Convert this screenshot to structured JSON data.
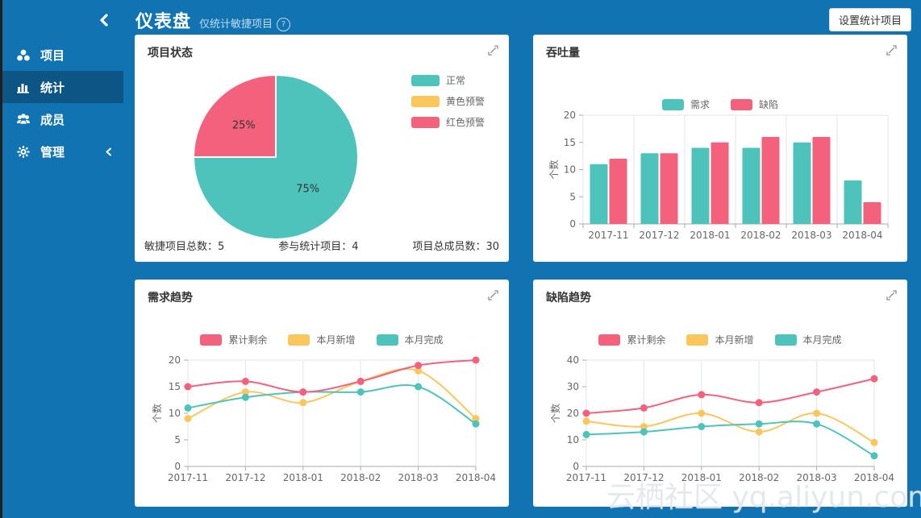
{
  "header": {
    "title": "仪表盘",
    "subtitle": "仅统计敏捷项目",
    "help_icon": "question-circle-icon",
    "settings_button_label": "设置统计项目"
  },
  "sidebar": {
    "collapse_icon": "chevron-left-icon",
    "items": [
      {
        "label": "项目",
        "icon": "projects-icon",
        "active": false
      },
      {
        "label": "统计",
        "icon": "statistics-icon",
        "active": true
      },
      {
        "label": "成员",
        "icon": "members-icon",
        "active": false
      },
      {
        "label": "管理",
        "icon": "gear-icon",
        "active": false,
        "has_submenu": true
      }
    ]
  },
  "colors": {
    "teal": "#4ec3bb",
    "yellow": "#fbc75d",
    "pink": "#f3617c",
    "page_bg": "#1173b2",
    "sidebar_active_bg": "#0d5585",
    "card_bg": "#ffffff",
    "axis_text": "#666666",
    "grid_line": "#e2e6ea",
    "axis_line": "#aaaaaa"
  },
  "cards": {
    "project_status": {
      "title": "项目状态",
      "stats": [
        {
          "label": "敏捷项目总数：",
          "value": "5"
        },
        {
          "label": "参与统计项目：",
          "value": "4"
        },
        {
          "label": "项目总成员数：",
          "value": "30"
        }
      ]
    },
    "throughput": {
      "title": "吞吐量"
    },
    "demand_trend": {
      "title": "需求趋势"
    },
    "defect_trend": {
      "title": "缺陷趋势"
    }
  },
  "chart_data": [
    {
      "id": "project-status-pie",
      "type": "pie",
      "title": "项目状态",
      "slices": [
        {
          "name": "正常",
          "value": 75,
          "percent_label": "75%",
          "color_key": "teal"
        },
        {
          "name": "黄色预警",
          "value": 0,
          "percent_label": "",
          "color_key": "yellow"
        },
        {
          "name": "红色预警",
          "value": 25,
          "percent_label": "25%",
          "color_key": "pink"
        }
      ],
      "legend_position": "right"
    },
    {
      "id": "throughput-bar",
      "type": "bar",
      "title": "吞吐量",
      "categories": [
        "2017-11",
        "2017-12",
        "2018-01",
        "2018-02",
        "2018-03",
        "2018-04"
      ],
      "series": [
        {
          "name": "需求",
          "color_key": "teal",
          "values": [
            11,
            13,
            14,
            14,
            15,
            8
          ]
        },
        {
          "name": "缺陷",
          "color_key": "pink",
          "values": [
            12,
            13,
            15,
            16,
            16,
            4
          ]
        }
      ],
      "xlabel": "",
      "ylabel": "个数",
      "yticks": [
        0,
        5,
        10,
        15,
        20
      ],
      "ylim": [
        0,
        20
      ],
      "legend_position": "top",
      "grid": "vertical"
    },
    {
      "id": "demand-trend-line",
      "type": "line",
      "title": "需求趋势",
      "x": [
        "2017-11",
        "2017-12",
        "2018-01",
        "2018-02",
        "2018-03",
        "2018-04"
      ],
      "series": [
        {
          "name": "累计剩余",
          "color_key": "pink",
          "values": [
            15,
            16,
            14,
            16,
            19,
            20
          ]
        },
        {
          "name": "本月新增",
          "color_key": "yellow",
          "values": [
            9,
            14,
            12,
            16,
            18,
            9
          ]
        },
        {
          "name": "本月完成",
          "color_key": "teal",
          "values": [
            11,
            13,
            14,
            14,
            15,
            8
          ]
        }
      ],
      "xlabel": "",
      "ylabel": "个数",
      "yticks": [
        0,
        5,
        10,
        15,
        20
      ],
      "ylim": [
        0,
        20
      ],
      "smooth": true,
      "legend_position": "top",
      "grid": "vertical"
    },
    {
      "id": "defect-trend-line",
      "type": "line",
      "title": "缺陷趋势",
      "x": [
        "2017-11",
        "2017-12",
        "2018-01",
        "2018-02",
        "2018-03",
        "2018-04"
      ],
      "series": [
        {
          "name": "累计剩余",
          "color_key": "pink",
          "values": [
            20,
            22,
            27,
            24,
            28,
            33
          ]
        },
        {
          "name": "本月新增",
          "color_key": "yellow",
          "values": [
            17,
            15,
            20,
            13,
            20,
            9
          ]
        },
        {
          "name": "本月完成",
          "color_key": "teal",
          "values": [
            12,
            13,
            15,
            16,
            16,
            4
          ]
        }
      ],
      "xlabel": "",
      "ylabel": "个数",
      "yticks": [
        0,
        10,
        20,
        30,
        40
      ],
      "ylim": [
        0,
        40
      ],
      "smooth": true,
      "legend_position": "top",
      "grid": "vertical"
    }
  ],
  "watermark": "云栖社区 yq.aliyun.com"
}
